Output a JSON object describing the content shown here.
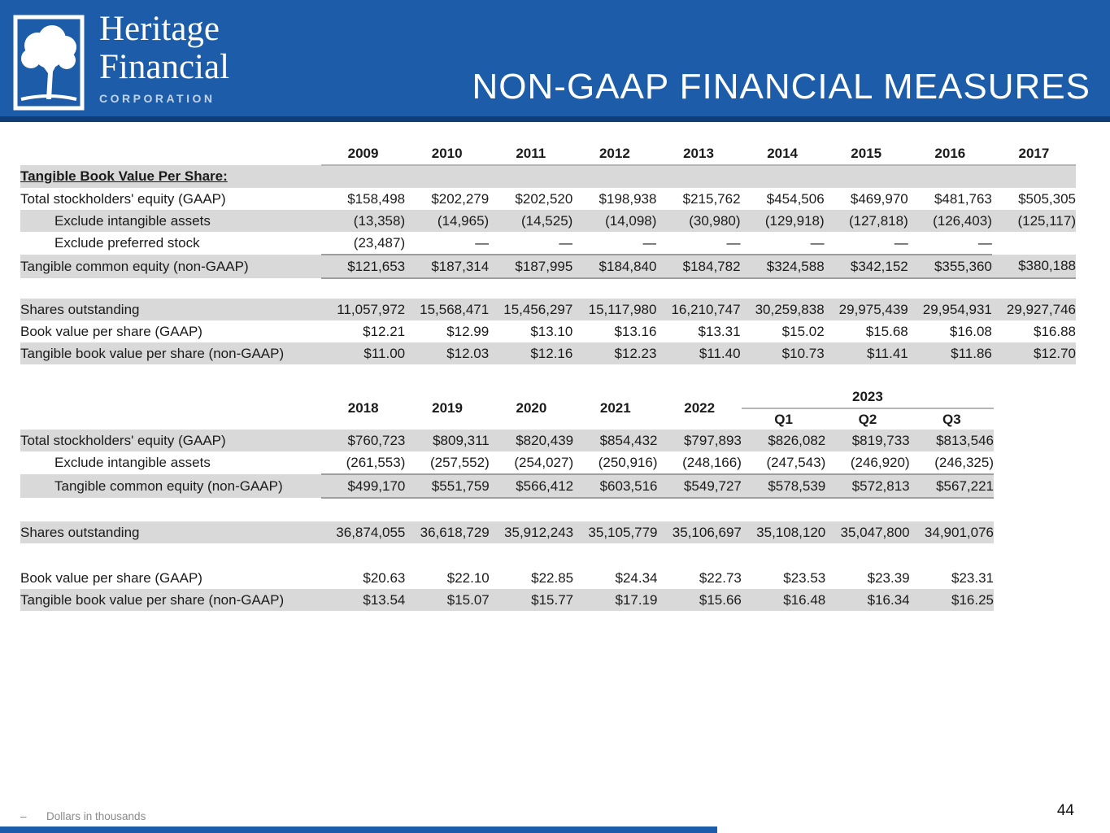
{
  "header": {
    "logo_name_line1": "Heritage",
    "logo_name_line2": "Financial",
    "logo_sub": "CORPORATION",
    "title": "NON-GAAP FINANCIAL MEASURES",
    "colors": {
      "banner_blue": "#1d5ca8",
      "banner_edge": "#0f3e78",
      "row_shade": "#d9d9d9"
    }
  },
  "table1": {
    "columns": [
      "2009",
      "2010",
      "2011",
      "2012",
      "2013",
      "2014",
      "2015",
      "2016",
      "2017"
    ],
    "rows_equity": [
      {
        "label": "Tangible Book Value Per Share:",
        "section": true,
        "shaded": true,
        "values": [
          "",
          "",
          "",
          "",
          "",
          "",
          "",
          "",
          ""
        ]
      },
      {
        "label": "Total stockholders' equity (GAAP)",
        "shaded": false,
        "values": [
          "$158,498",
          "$202,279",
          "$202,520",
          "$198,938",
          "$215,762",
          "$454,506",
          "$469,970",
          "$481,763",
          "$505,305"
        ]
      },
      {
        "label": "Exclude intangible assets",
        "indent": true,
        "shaded": true,
        "values": [
          "(13,358)",
          "(14,965)",
          "(14,525)",
          "(14,098)",
          "(30,980)",
          "(129,918)",
          "(127,818)",
          "(126,403)",
          "(125,117)"
        ]
      },
      {
        "label": "Exclude preferred stock",
        "indent": true,
        "shaded": false,
        "rule": true,
        "values": [
          "(23,487)",
          "—",
          "—",
          "—",
          "—",
          "—",
          "—",
          "—",
          ""
        ]
      },
      {
        "label": "Tangible common equity (non-GAAP)",
        "shaded": true,
        "rule": true,
        "values": [
          "$121,653",
          "$187,314",
          "$187,995",
          "$184,840",
          "$184,782",
          "$324,588",
          "$342,152",
          "$355,360",
          "$380,188"
        ]
      }
    ],
    "rows_shares": [
      {
        "label": "Shares outstanding",
        "shaded": true,
        "values": [
          "11,057,972",
          "15,568,471",
          "15,456,297",
          "15,117,980",
          "16,210,747",
          "30,259,838",
          "29,975,439",
          "29,954,931",
          "29,927,746"
        ]
      },
      {
        "label": "Book value per share (GAAP)",
        "shaded": false,
        "values": [
          "$12.21",
          "$12.99",
          "$13.10",
          "$13.16",
          "$13.31",
          "$15.02",
          "$15.68",
          "$16.08",
          "$16.88"
        ]
      },
      {
        "label": "Tangible book value per share (non-GAAP)",
        "shaded": true,
        "values": [
          "$11.00",
          "$12.03",
          "$12.16",
          "$12.23",
          "$11.40",
          "$10.73",
          "$11.41",
          "$11.86",
          "$12.70"
        ]
      }
    ]
  },
  "table2": {
    "columns": [
      "2018",
      "2019",
      "2020",
      "2021",
      "2022"
    ],
    "group2023": {
      "label": "2023",
      "quarters": [
        "Q1",
        "Q2",
        "Q3"
      ]
    },
    "rows_equity": [
      {
        "label": "Total stockholders' equity (GAAP)",
        "shaded": true,
        "values": [
          "$760,723",
          "$809,311",
          "$820,439",
          "$854,432",
          "$797,893",
          "$826,082",
          "$819,733",
          "$813,546"
        ]
      },
      {
        "label": "Exclude intangible assets",
        "indent": true,
        "shaded": false,
        "rule": true,
        "values": [
          "(261,553)",
          "(257,552)",
          "(254,027)",
          "(250,916)",
          "(248,166)",
          "(247,543)",
          "(246,920)",
          "(246,325)"
        ]
      },
      {
        "label": "Tangible common equity (non-GAAP)",
        "indent": true,
        "shaded": true,
        "rule": true,
        "values": [
          "$499,170",
          "$551,759",
          "$566,412",
          "$603,516",
          "$549,727",
          "$578,539",
          "$572,813",
          "$567,221"
        ]
      }
    ],
    "rows_shares": [
      {
        "label": "Shares outstanding",
        "shaded": true,
        "values": [
          "36,874,055",
          "36,618,729",
          "35,912,243",
          "35,105,779",
          "35,106,697",
          "35,108,120",
          "35,047,800",
          "34,901,076"
        ]
      }
    ],
    "rows_book": [
      {
        "label": "Book value per share (GAAP)",
        "shaded": false,
        "values": [
          "$20.63",
          "$22.10",
          "$22.85",
          "$24.34",
          "$22.73",
          "$23.53",
          "$23.39",
          "$23.31"
        ]
      },
      {
        "label": "Tangible book value per share (non-GAAP)",
        "shaded": true,
        "values": [
          "$13.54",
          "$15.07",
          "$15.77",
          "$17.19",
          "$15.66",
          "$16.48",
          "$16.34",
          "$16.25"
        ]
      }
    ]
  },
  "footer": {
    "note_dash": "–",
    "note": "Dollars in thousands",
    "page": "44"
  }
}
